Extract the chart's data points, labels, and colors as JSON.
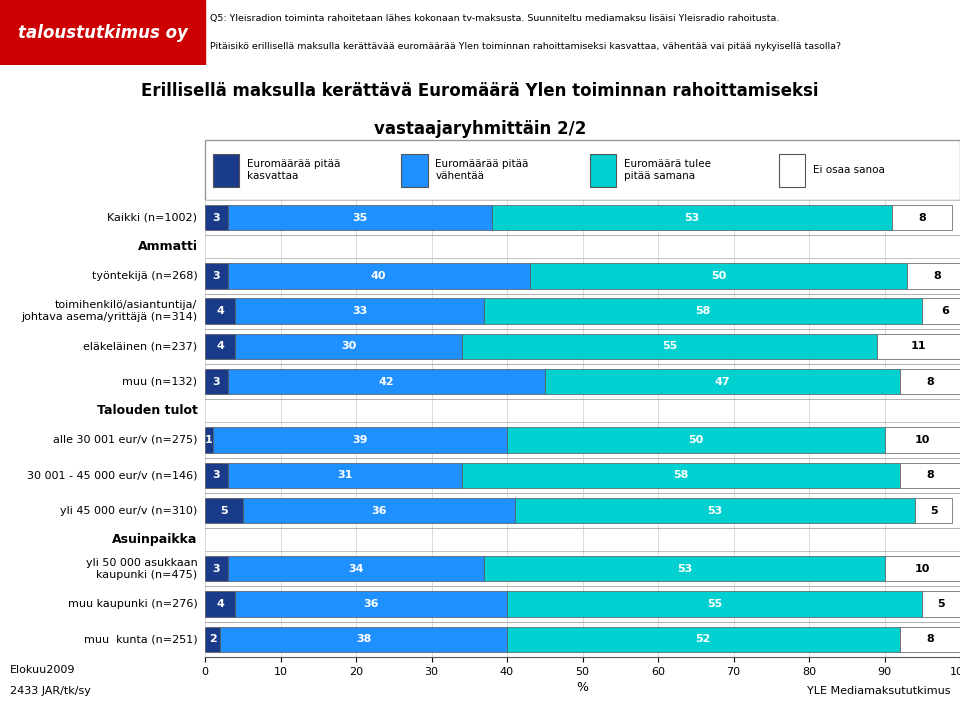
{
  "title_line1": "Erillisellä maksulla kerättävä Euromäärä Ylen toiminnan rahoittamiseksi",
  "title_line2": "vastaajaryhmittäin 2/2",
  "header_line1": "Q5: Yleisradion toiminta rahoitetaan lähes kokonaan tv-maksusta. Suunniteltu mediamaksu lisäisi Yleisradio rahoitusta.",
  "header_line2": "Pitäisikö erillisellä maksulla kerättävää euromäärää Ylen toiminnan rahoittamiseksi kasvattaa, vähentää vai pitää nykyisellä tasolla?",
  "categories": [
    "Kaikki (n=1002)",
    "Ammatti",
    "työntekijä (n=268)",
    "toimihenkilö/asiantuntija/\njohtava asema/yrittäjä (n=314)",
    "eläkeläinen (n=237)",
    "muu (n=132)",
    "Talouden tulot",
    "alle 30 001 eur/v (n=275)",
    "30 001 - 45 000 eur/v (n=146)",
    "yli 45 000 eur/v (n=310)",
    "Asuinpaikka",
    "yli 50 000 asukkaan\nkaupunki (n=475)",
    "muu kaupunki (n=276)",
    "muu  kunta (n=251)"
  ],
  "is_header": [
    false,
    true,
    false,
    false,
    false,
    false,
    true,
    false,
    false,
    false,
    true,
    false,
    false,
    false
  ],
  "data": [
    [
      3,
      35,
      53,
      8
    ],
    [
      0,
      0,
      0,
      0
    ],
    [
      3,
      40,
      50,
      8
    ],
    [
      4,
      33,
      58,
      6
    ],
    [
      4,
      30,
      55,
      11
    ],
    [
      3,
      42,
      47,
      8
    ],
    [
      0,
      0,
      0,
      0
    ],
    [
      1,
      39,
      50,
      10
    ],
    [
      3,
      31,
      58,
      8
    ],
    [
      5,
      36,
      53,
      5
    ],
    [
      0,
      0,
      0,
      0
    ],
    [
      3,
      34,
      53,
      10
    ],
    [
      4,
      36,
      55,
      5
    ],
    [
      2,
      38,
      52,
      8
    ]
  ],
  "colors": [
    "#1a3a8a",
    "#1e90ff",
    "#00d0d0",
    "#ffffff"
  ],
  "legend_labels": [
    "Euromäärää pitää\nkasvattaa",
    "Euromäärää pitää\nvähentää",
    "Euromäärä tulee\npitää samana",
    "Ei osaa sanoa"
  ],
  "footer_left1": "Elokuu2009",
  "footer_left2": "2433 JAR/tk/sy",
  "footer_right": "YLE Mediamaksututkimus",
  "logo_color": "#cc0000",
  "logo_text": "taloustutkimus oy",
  "xlim": [
    0,
    100
  ],
  "fig_width": 9.6,
  "fig_height": 7.07,
  "dpi": 100
}
